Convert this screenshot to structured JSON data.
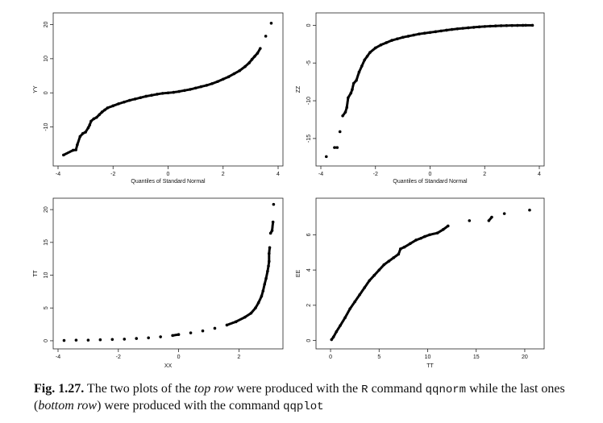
{
  "figure": {
    "caption": {
      "label": "Fig. 1.27.",
      "t1": " The two plots of the ",
      "top_row": "top row",
      "t2": " were produced with the ",
      "r": "R",
      "t3": " command ",
      "qqnorm": "qqnorm",
      "t4": " while the last ones (",
      "bottom_row": "bottom row",
      "t5": ") were produced with the command ",
      "qqplot": "qqplot"
    }
  },
  "chart_data": [
    {
      "type": "scatter",
      "ylabel": "YY",
      "xlabel": "Quantiles of Standard Normal",
      "xlim": [
        -4,
        4
      ],
      "ylim": [
        -20,
        22
      ],
      "xticks": [
        "-4",
        "-2",
        "0",
        "2",
        "4"
      ],
      "yticks": [
        "-10",
        "0",
        "10",
        "20"
      ],
      "points": [
        [
          -3.8,
          -18.2
        ],
        [
          -3.45,
          -16.8
        ],
        [
          -3.35,
          -16.7
        ],
        [
          -3.3,
          -15.2
        ],
        [
          -3.2,
          -12.8
        ],
        [
          -3.1,
          -11.9
        ],
        [
          -3.0,
          -11.5
        ],
        [
          -2.9,
          -10.2
        ],
        [
          -2.85,
          -9.4
        ],
        [
          -2.8,
          -8.3
        ],
        [
          -2.7,
          -7.6
        ],
        [
          -2.6,
          -7.2
        ],
        [
          -2.5,
          -6.4
        ],
        [
          -2.4,
          -5.6
        ],
        [
          -2.3,
          -5.0
        ],
        [
          -2.2,
          -4.4
        ],
        [
          -2.0,
          -3.8
        ],
        [
          -1.8,
          -3.2
        ],
        [
          -1.6,
          -2.7
        ],
        [
          -1.4,
          -2.2
        ],
        [
          -1.2,
          -1.8
        ],
        [
          -1.0,
          -1.4
        ],
        [
          -0.8,
          -1.0
        ],
        [
          -0.6,
          -0.7
        ],
        [
          -0.4,
          -0.4
        ],
        [
          -0.2,
          -0.15
        ],
        [
          0,
          0
        ],
        [
          0.2,
          0.15
        ],
        [
          0.4,
          0.4
        ],
        [
          0.6,
          0.7
        ],
        [
          0.8,
          1.0
        ],
        [
          1.0,
          1.4
        ],
        [
          1.2,
          1.8
        ],
        [
          1.4,
          2.2
        ],
        [
          1.6,
          2.7
        ],
        [
          1.8,
          3.3
        ],
        [
          2.0,
          4.0
        ],
        [
          2.2,
          4.7
        ],
        [
          2.4,
          5.6
        ],
        [
          2.6,
          6.5
        ],
        [
          2.8,
          7.7
        ],
        [
          2.95,
          8.8
        ],
        [
          3.05,
          9.8
        ],
        [
          3.15,
          10.7
        ],
        [
          3.25,
          11.6
        ],
        [
          3.35,
          13.0
        ],
        [
          3.55,
          16.6
        ],
        [
          3.75,
          20.4
        ]
      ]
    },
    {
      "type": "scatter",
      "ylabel": "ZZ",
      "xlabel": "Quantiles of Standard Normal",
      "xlim": [
        -4,
        4
      ],
      "ylim": [
        -18,
        1
      ],
      "xticks": [
        "-4",
        "-2",
        "0",
        "2",
        "4"
      ],
      "yticks": [
        "-15",
        "-10",
        "-5",
        "0"
      ],
      "points": [
        [
          -3.8,
          -17.4
        ],
        [
          -3.5,
          -16.2
        ],
        [
          -3.4,
          -16.2
        ],
        [
          -3.3,
          -14.1
        ],
        [
          -3.2,
          -12.0
        ],
        [
          -3.1,
          -11.5
        ],
        [
          -3.05,
          -10.9
        ],
        [
          -3.0,
          -9.6
        ],
        [
          -2.9,
          -9.0
        ],
        [
          -2.85,
          -8.5
        ],
        [
          -2.8,
          -7.7
        ],
        [
          -2.7,
          -7.3
        ],
        [
          -2.6,
          -6.2
        ],
        [
          -2.5,
          -5.4
        ],
        [
          -2.4,
          -4.6
        ],
        [
          -2.3,
          -4.1
        ],
        [
          -2.2,
          -3.6
        ],
        [
          -2.0,
          -3.0
        ],
        [
          -1.8,
          -2.6
        ],
        [
          -1.6,
          -2.3
        ],
        [
          -1.4,
          -2.0
        ],
        [
          -1.2,
          -1.8
        ],
        [
          -1.0,
          -1.6
        ],
        [
          -0.8,
          -1.45
        ],
        [
          -0.6,
          -1.3
        ],
        [
          -0.4,
          -1.15
        ],
        [
          -0.2,
          -1.05
        ],
        [
          0,
          -0.95
        ],
        [
          0.2,
          -0.85
        ],
        [
          0.4,
          -0.75
        ],
        [
          0.6,
          -0.65
        ],
        [
          0.8,
          -0.55
        ],
        [
          1.0,
          -0.47
        ],
        [
          1.2,
          -0.4
        ],
        [
          1.4,
          -0.33
        ],
        [
          1.6,
          -0.27
        ],
        [
          1.8,
          -0.21
        ],
        [
          2.0,
          -0.16
        ],
        [
          2.2,
          -0.12
        ],
        [
          2.4,
          -0.09
        ],
        [
          2.6,
          -0.06
        ],
        [
          2.8,
          -0.04
        ],
        [
          3.0,
          -0.03
        ],
        [
          3.2,
          -0.02
        ],
        [
          3.4,
          -0.01
        ],
        [
          3.5,
          0.0
        ],
        [
          3.75,
          0.0
        ]
      ]
    },
    {
      "type": "scatter",
      "ylabel": "TT",
      "xlabel": "XX",
      "xlim": [
        -4,
        3.3
      ],
      "ylim": [
        -0.5,
        21
      ],
      "xticks": [
        "-4",
        "-2",
        "0",
        "2"
      ],
      "yticks": [
        "0",
        "5",
        "10",
        "15",
        "20"
      ],
      "points": [
        [
          -3.8,
          0.05
        ],
        [
          -3.4,
          0.1
        ],
        [
          -3.0,
          0.1
        ],
        [
          -2.6,
          0.15
        ],
        [
          -2.2,
          0.2
        ],
        [
          -1.8,
          0.25
        ],
        [
          -1.4,
          0.35
        ],
        [
          -1.0,
          0.45
        ],
        [
          -0.6,
          0.6
        ],
        [
          -0.2,
          0.8
        ],
        [
          0,
          0.95
        ],
        [
          0.4,
          1.2
        ],
        [
          0.8,
          1.5
        ],
        [
          1.2,
          1.9
        ],
        [
          1.6,
          2.4
        ],
        [
          1.9,
          2.9
        ],
        [
          2.2,
          3.6
        ],
        [
          2.4,
          4.2
        ],
        [
          2.55,
          5.0
        ],
        [
          2.65,
          5.8
        ],
        [
          2.75,
          6.8
        ],
        [
          2.8,
          7.6
        ],
        [
          2.85,
          8.6
        ],
        [
          2.9,
          9.5
        ],
        [
          2.95,
          10.6
        ],
        [
          2.98,
          11.4
        ],
        [
          3.0,
          12.1
        ],
        [
          3.0,
          13.3
        ],
        [
          3.02,
          14.2
        ],
        [
          3.05,
          16.4
        ],
        [
          3.1,
          16.8
        ],
        [
          3.13,
          18.1
        ],
        [
          3.15,
          20.8
        ]
      ]
    },
    {
      "type": "scatter",
      "ylabel": "EE",
      "xlabel": "TT",
      "xlim": [
        -1,
        21.5
      ],
      "ylim": [
        -0.2,
        7.8
      ],
      "xticks": [
        "0",
        "5",
        "10",
        "15",
        "20"
      ],
      "yticks": [
        "0",
        "2",
        "4",
        "6"
      ],
      "points": [
        [
          0.1,
          0.05
        ],
        [
          0.3,
          0.2
        ],
        [
          0.6,
          0.5
        ],
        [
          1.0,
          0.85
        ],
        [
          1.5,
          1.3
        ],
        [
          2.0,
          1.8
        ],
        [
          2.5,
          2.2
        ],
        [
          3.0,
          2.6
        ],
        [
          3.5,
          3.0
        ],
        [
          4.0,
          3.4
        ],
        [
          4.5,
          3.7
        ],
        [
          5.0,
          4.0
        ],
        [
          5.5,
          4.3
        ],
        [
          6.0,
          4.5
        ],
        [
          6.5,
          4.7
        ],
        [
          7.0,
          4.9
        ],
        [
          7.2,
          5.2
        ],
        [
          7.6,
          5.3
        ],
        [
          8.2,
          5.5
        ],
        [
          8.8,
          5.7
        ],
        [
          9.3,
          5.8
        ],
        [
          9.7,
          5.9
        ],
        [
          10.2,
          6.0
        ],
        [
          11.0,
          6.1
        ],
        [
          11.6,
          6.3
        ],
        [
          12.1,
          6.5
        ],
        [
          14.3,
          6.8
        ],
        [
          16.3,
          6.8
        ],
        [
          16.6,
          7.0
        ],
        [
          17.9,
          7.2
        ],
        [
          20.5,
          7.4
        ]
      ]
    }
  ]
}
